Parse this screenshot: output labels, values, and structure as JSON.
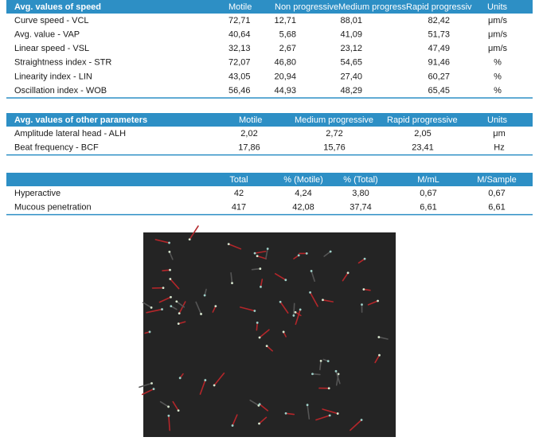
{
  "tables": [
    {
      "headers": [
        "Avg. values of speed",
        "Motile",
        "Non progressive",
        "Medium progress",
        "Rapid progressiv",
        "Units"
      ],
      "rows": [
        [
          "Curve speed - VCL",
          "72,71",
          "12,71",
          "88,01",
          "82,42",
          "μm/s"
        ],
        [
          "Avg. value - VAP",
          "40,64",
          "5,68",
          "41,09",
          "51,73",
          "μm/s"
        ],
        [
          "Linear speed - VSL",
          "32,13",
          "2,67",
          "23,12",
          "47,49",
          "μm/s"
        ],
        [
          "Straightness index - STR",
          "72,07",
          "46,80",
          "54,65",
          "91,46",
          "%"
        ],
        [
          "Linearity index - LIN",
          "43,05",
          "20,94",
          "27,40",
          "60,27",
          "%"
        ],
        [
          "Oscillation index - WOB",
          "56,46",
          "44,93",
          "48,29",
          "65,45",
          "%"
        ]
      ]
    },
    {
      "headers": [
        "Avg. values of other parameters",
        "Motile",
        "Medium progressive",
        "Rapid progressive",
        "Units"
      ],
      "rows": [
        [
          "Amplitude lateral head - ALH",
          "2,02",
          "2,72",
          "2,05",
          "μm"
        ],
        [
          "Beat frequency - BCF",
          "17,86",
          "15,76",
          "23,41",
          "Hz"
        ]
      ]
    },
    {
      "headers": [
        "Total",
        "% (Motile)",
        "% (Total)",
        "M/mL",
        "M/Sample"
      ],
      "rows": [
        [
          "Hyperactive",
          "42",
          "4,24",
          "3,80",
          "0,67",
          "0,67"
        ],
        [
          "Mucous penetration",
          "417",
          "42,08",
          "37,74",
          "6,61",
          "6,61"
        ]
      ]
    }
  ]
}
